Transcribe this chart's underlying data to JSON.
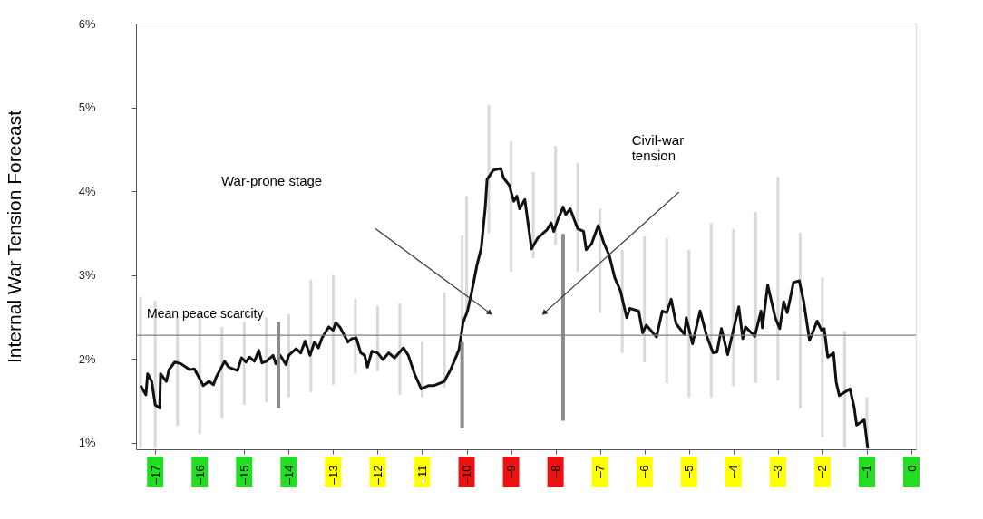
{
  "chart_data": {
    "type": "line",
    "ylabel": "Internal War Tension Forecast",
    "xlim": [
      -17.33,
      0
    ],
    "ylim": [
      0.92,
      6
    ],
    "xticks": [
      {
        "value": -17,
        "label": "–17"
      },
      {
        "value": -16,
        "label": "–16"
      },
      {
        "value": -15,
        "label": "–15"
      },
      {
        "value": -14,
        "label": "–14"
      },
      {
        "value": -13,
        "label": "–13"
      },
      {
        "value": -12,
        "label": "–12"
      },
      {
        "value": -11,
        "label": "–11"
      },
      {
        "value": -10,
        "label": "–10"
      },
      {
        "value": -9,
        "label": "–9"
      },
      {
        "value": -8,
        "label": "–8"
      },
      {
        "value": -7,
        "label": "–7"
      },
      {
        "value": -6,
        "label": "–6"
      },
      {
        "value": -5,
        "label": "–5"
      },
      {
        "value": -4,
        "label": "–4"
      },
      {
        "value": -3,
        "label": "–3"
      },
      {
        "value": -2,
        "label": "–2"
      },
      {
        "value": -1,
        "label": "–1"
      },
      0
    ],
    "colors": [
      "#22dd22",
      "#22dd22",
      "#22dd22",
      "#22dd22",
      "#ffff00",
      "#ffff00",
      "#ffff00",
      "#ee1111",
      "#ee1111",
      "#ee1111",
      "#ffff00",
      "#ffff00",
      "#ffff00",
      "#ffff00",
      "#ffff00",
      "#ffff00",
      "#22dd22",
      "#22dd22"
    ],
    "yticks": [
      {
        "value": 1,
        "label": "1%"
      },
      {
        "value": 2,
        "label": "2%"
      },
      {
        "value": 3,
        "label": "3%"
      },
      {
        "value": 4,
        "label": "4%"
      },
      {
        "value": 5,
        "label": "5%"
      },
      {
        "value": 6,
        "label": "6%"
      }
    ],
    "grid": false,
    "series": [
      {
        "type": "bar",
        "color": "#d9d9d9",
        "x": [
          -17.33,
          -17,
          -16.5,
          -16,
          -15.5,
          -15,
          -14.5,
          -14,
          -13.5,
          -13,
          -12.5,
          -12,
          -11.5,
          -11,
          -10.5,
          -10.1,
          -10,
          -9.5,
          -9,
          -8.5,
          -8,
          -7.5,
          -7,
          -6.5,
          -6,
          -5.5,
          -5,
          -4.5,
          -4,
          -3.5,
          -3,
          -2.5,
          -2,
          -1.5,
          -1
        ],
        "values": [
          1.81,
          1.76,
          1.3,
          1.45,
          1.09,
          0.99,
          1.01,
          0.99,
          1.34,
          1.31,
          0.9,
          0.78,
          1.09,
          0.66,
          1.13,
          1.15,
          1.44,
          1.53,
          1.56,
          1.03,
          1.18,
          1.3,
          1.24,
          1.23,
          1.5,
          1.73,
          1.76,
          2.08,
          1.88,
          2.04,
          2.43,
          2.09,
          1.91,
          1.39,
          0.6
        ],
        "base": [
          0.93,
          0.93,
          1.2,
          1.1,
          1.29,
          1.45,
          1.48,
          1.54,
          1.6,
          1.69,
          1.82,
          1.85,
          1.57,
          1.54,
          1.66,
          2.32,
          2.5,
          3.5,
          3.04,
          3.2,
          3.36,
          3.04,
          2.55,
          2.07,
          1.96,
          1.71,
          1.54,
          1.54,
          1.67,
          1.71,
          1.74,
          1.41,
          1.06,
          0.94,
          0.94
        ]
      },
      {
        "color": "#111111",
        "marker": "none",
        "line_style": "solid",
        "x": [
          -17.33,
          -17.21,
          -17.17,
          -17.08,
          -17.0,
          -16.9,
          -16.88,
          -16.75,
          -16.69,
          -16.56,
          -16.42,
          -16.23,
          -16.12,
          -15.92,
          -15.79,
          -15.69,
          -15.63,
          -15.44,
          -15.35,
          -15.15,
          -15.06,
          -14.96,
          -14.88,
          -14.77,
          -14.67,
          -14.6,
          -14.5,
          -14.35,
          -14.29,
          -14.19,
          -14.06,
          -14.0,
          -13.83,
          -13.73,
          -13.63,
          -13.52,
          -13.42,
          -13.33,
          -13.25,
          -13.1,
          -13.0,
          -12.94,
          -12.85,
          -12.67,
          -12.58,
          -12.48,
          -12.38,
          -12.29,
          -12.23,
          -12.13,
          -12.0,
          -11.88,
          -11.75,
          -11.62,
          -11.42,
          -11.31,
          -11.17,
          -11.02,
          -10.85,
          -10.73,
          -10.5,
          -10.35,
          -10.17,
          -10.08,
          -9.98,
          -9.88,
          -9.77,
          -9.67,
          -9.58,
          -9.54,
          -9.4,
          -9.23,
          -9.17,
          -9.04,
          -8.94,
          -8.87,
          -8.81,
          -8.69,
          -8.54,
          -8.4,
          -8.19,
          -8.1,
          -8.04,
          -7.94,
          -7.83,
          -7.77,
          -7.67,
          -7.5,
          -7.37,
          -7.31,
          -7.19,
          -7.04,
          -6.92,
          -6.79,
          -6.67,
          -6.54,
          -6.4,
          -6.33,
          -6.13,
          -6.04,
          -5.96,
          -5.73,
          -5.6,
          -5.5,
          -5.4,
          -5.29,
          -5.1,
          -5.06,
          -4.92,
          -4.75,
          -4.6,
          -4.46,
          -4.37,
          -4.27,
          -4.13,
          -3.88,
          -3.79,
          -3.73,
          -3.52,
          -3.38,
          -3.35,
          -3.23,
          -3.06,
          -2.96,
          -2.87,
          -2.79,
          -2.65,
          -2.52,
          -2.42,
          -2.29,
          -2.12,
          -2.02,
          -1.96,
          -1.88,
          -1.75,
          -1.69,
          -1.62,
          -1.38,
          -1.29,
          -1.23,
          -1.06,
          -0.98
        ],
        "values": [
          1.68,
          1.57,
          1.82,
          1.73,
          1.45,
          1.41,
          1.82,
          1.73,
          1.87,
          1.96,
          1.94,
          1.87,
          1.88,
          1.68,
          1.73,
          1.69,
          1.78,
          1.97,
          1.9,
          1.86,
          2.01,
          1.96,
          2.02,
          1.97,
          2.1,
          1.95,
          1.97,
          2.04,
          1.94,
          2.04,
          1.93,
          2.04,
          2.12,
          2.07,
          2.21,
          2.04,
          2.2,
          2.13,
          2.25,
          2.38,
          2.34,
          2.43,
          2.38,
          2.2,
          2.24,
          2.25,
          2.07,
          2.04,
          1.9,
          2.09,
          2.07,
          1.99,
          2.07,
          2.01,
          2.13,
          2.04,
          1.82,
          1.64,
          1.68,
          1.68,
          1.73,
          1.88,
          2.11,
          2.43,
          2.57,
          2.81,
          3.11,
          3.32,
          3.81,
          4.14,
          4.25,
          4.27,
          4.16,
          4.07,
          3.88,
          3.94,
          3.79,
          3.9,
          3.31,
          3.44,
          3.54,
          3.62,
          3.52,
          3.67,
          3.81,
          3.72,
          3.79,
          3.55,
          3.52,
          3.3,
          3.37,
          3.59,
          3.39,
          3.23,
          2.97,
          2.81,
          2.49,
          2.6,
          2.57,
          2.31,
          2.4,
          2.26,
          2.57,
          2.55,
          2.71,
          2.42,
          2.29,
          2.49,
          2.18,
          2.57,
          2.27,
          2.07,
          2.08,
          2.36,
          2.05,
          2.62,
          2.24,
          2.38,
          2.27,
          2.57,
          2.37,
          2.88,
          2.49,
          2.36,
          2.68,
          2.55,
          2.91,
          2.93,
          2.68,
          2.22,
          2.45,
          2.34,
          2.36,
          2.02,
          2.07,
          1.72,
          1.56,
          1.64,
          1.43,
          1.21,
          1.27,
          0.93
        ]
      },
      {
        "type": "bar",
        "color": "#8c8c8c",
        "x": [
          -14.23,
          -10.1,
          -7.83
        ],
        "base": [
          1.41,
          1.17,
          1.26
        ],
        "values": [
          1.03,
          1.03,
          2.23
        ]
      }
    ],
    "ref_lines": [
      {
        "axis": "y",
        "value": 2.28,
        "label": "Mean peace scarcity",
        "color": "#808080"
      }
    ],
    "annotations": [
      "War-prone stage",
      "Civil-war tension"
    ]
  }
}
